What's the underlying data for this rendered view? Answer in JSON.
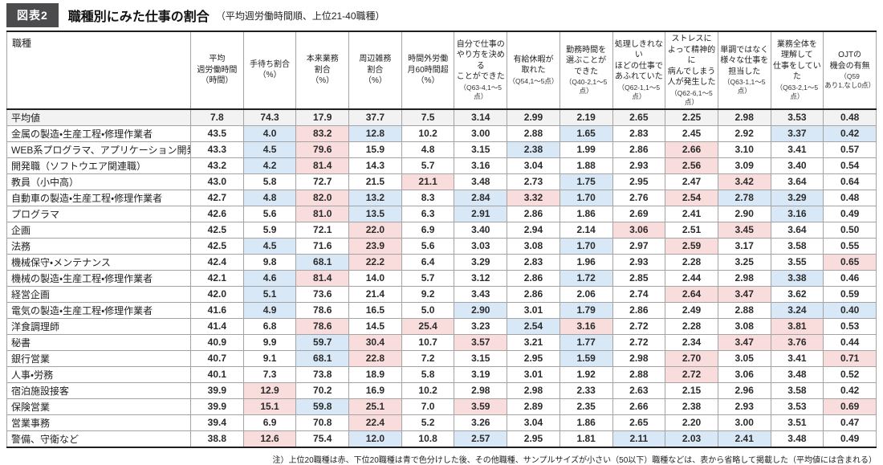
{
  "figure": {
    "tag": "図表2",
    "title": "職種別にみた仕事の割合",
    "subtitle": "（平均週労働時間順、上位21-40職種）"
  },
  "colors": {
    "highlight_top20": "#f9dcdc",
    "highlight_bottom20": "#d9e8f6",
    "average_row_bg": "#f2f2f2",
    "tag_bg": "#4b4b4d"
  },
  "footnote": "注）上位20職種は赤、下位20職種は青で色分けした後、その他職種、サンプルサイズが小さい（50以下）職種などは、表から省略して掲載した（平均値には含まれる）",
  "chart_data": {
    "type": "table",
    "row_header": "職種",
    "highlight_legend": {
      "r": "上位20職種（赤）",
      "b": "下位20職種（青）"
    },
    "columns": [
      {
        "lines": [
          "平均",
          "週労働時間",
          "（時間）"
        ]
      },
      {
        "lines": [
          "手待ち割合",
          "（%）"
        ]
      },
      {
        "lines": [
          "本来業務",
          "割合",
          "（%）"
        ]
      },
      {
        "lines": [
          "周辺雑務",
          "割合",
          "（%）"
        ]
      },
      {
        "lines": [
          "時間外労働",
          "月60時間超",
          "（%）"
        ]
      },
      {
        "lines": [
          "自分で仕事の",
          "やり方を決める",
          "ことができた"
        ],
        "note": [
          "（Q63-4,1～5点）"
        ]
      },
      {
        "lines": [
          "有給休暇が",
          "取れた"
        ],
        "note": [
          "（Q54,1～5点）"
        ]
      },
      {
        "lines": [
          "勤務時間を",
          "選ぶことが",
          "できた"
        ],
        "note": [
          "（Q40-2,1～5点）"
        ]
      },
      {
        "lines": [
          "処理しきれない",
          "ほどの仕事で",
          "あふれていた"
        ],
        "note": [
          "（Q62-1,1～5点）"
        ]
      },
      {
        "lines": [
          "ストレスに",
          "よって精神的に",
          "病んでしまう",
          "人が発生した"
        ],
        "note": [
          "（Q62-6,1～5点）"
        ]
      },
      {
        "lines": [
          "単調ではなく",
          "様々な仕事を",
          "担当した"
        ],
        "note": [
          "（Q63-1,1～5点）"
        ]
      },
      {
        "lines": [
          "業務全体を",
          "理解して",
          "仕事をしていた"
        ],
        "note": [
          "（Q63-2,1～5点）"
        ]
      },
      {
        "lines": [
          "OJTの",
          "機会の有無"
        ],
        "note": [
          "（Q59",
          "あり1,なし0点）"
        ]
      }
    ],
    "rows": [
      {
        "name": "平均値",
        "average": true,
        "values": [
          "7.8",
          "74.3",
          "17.9",
          "37.7",
          "7.5",
          "3.14",
          "2.99",
          "2.19",
          "2.65",
          "2.25",
          "2.98",
          "3.53",
          "0.48"
        ],
        "marks": [
          "",
          "",
          "",
          "",
          "",
          "",
          "",
          "",
          "",
          "",
          "",
          "",
          ""
        ]
      },
      {
        "name": "金属の製造・生産工程・修理作業者",
        "values": [
          "43.5",
          "4.0",
          "83.2",
          "12.8",
          "10.2",
          "3.00",
          "2.88",
          "1.65",
          "2.83",
          "2.45",
          "2.92",
          "3.37",
          "0.42"
        ],
        "marks": [
          "",
          "b",
          "r",
          "b",
          "",
          "",
          "",
          "b",
          "",
          "",
          "",
          "b",
          "b"
        ]
      },
      {
        "name": "WEB系プログラマ、アプリケーション開発",
        "values": [
          "43.3",
          "4.5",
          "79.6",
          "15.9",
          "4.8",
          "3.15",
          "2.38",
          "1.99",
          "2.86",
          "2.66",
          "3.10",
          "3.41",
          "0.57"
        ],
        "marks": [
          "",
          "b",
          "r",
          "",
          "",
          "",
          "b",
          "",
          "",
          "r",
          "",
          "",
          ""
        ]
      },
      {
        "name": "開発職（ソフトウエア関連職）",
        "values": [
          "43.2",
          "4.2",
          "81.4",
          "14.3",
          "5.7",
          "3.16",
          "3.04",
          "1.88",
          "2.93",
          "2.56",
          "3.09",
          "3.40",
          "0.54"
        ],
        "marks": [
          "",
          "b",
          "r",
          "",
          "",
          "",
          "",
          "",
          "",
          "r",
          "",
          "",
          ""
        ]
      },
      {
        "name": "教員（小中高）",
        "values": [
          "43.0",
          "5.8",
          "72.7",
          "21.5",
          "21.1",
          "3.48",
          "2.73",
          "1.75",
          "2.95",
          "2.47",
          "3.42",
          "3.64",
          "0.64"
        ],
        "marks": [
          "",
          "",
          "",
          "",
          "r",
          "",
          "",
          "b",
          "",
          "",
          "r",
          "",
          ""
        ]
      },
      {
        "name": "自動車の製造・生産工程・修理作業者",
        "values": [
          "42.7",
          "4.8",
          "82.0",
          "13.2",
          "8.3",
          "2.84",
          "3.32",
          "1.70",
          "2.76",
          "2.54",
          "2.78",
          "3.29",
          "0.48"
        ],
        "marks": [
          "",
          "b",
          "r",
          "b",
          "",
          "b",
          "r",
          "b",
          "",
          "r",
          "b",
          "b",
          ""
        ]
      },
      {
        "name": "プログラマ",
        "values": [
          "42.6",
          "5.6",
          "81.0",
          "13.5",
          "6.3",
          "2.91",
          "2.86",
          "1.86",
          "2.69",
          "2.41",
          "2.90",
          "3.16",
          "0.49"
        ],
        "marks": [
          "",
          "",
          "r",
          "b",
          "",
          "b",
          "",
          "",
          "",
          "",
          "",
          "b",
          ""
        ]
      },
      {
        "name": "企画",
        "values": [
          "42.5",
          "5.9",
          "72.1",
          "22.0",
          "6.9",
          "3.40",
          "2.94",
          "2.14",
          "3.06",
          "2.51",
          "3.45",
          "3.64",
          "0.50"
        ],
        "marks": [
          "",
          "",
          "",
          "r",
          "",
          "",
          "",
          "",
          "r",
          "",
          "r",
          "",
          ""
        ]
      },
      {
        "name": "法務",
        "values": [
          "42.5",
          "4.5",
          "71.6",
          "23.9",
          "5.6",
          "3.03",
          "3.08",
          "1.70",
          "2.97",
          "2.59",
          "3.17",
          "3.58",
          "0.55"
        ],
        "marks": [
          "",
          "b",
          "",
          "r",
          "",
          "",
          "",
          "b",
          "",
          "r",
          "",
          "",
          ""
        ]
      },
      {
        "name": "機械保守・メンテナンス",
        "values": [
          "42.4",
          "9.8",
          "68.1",
          "22.2",
          "6.4",
          "3.29",
          "2.83",
          "1.96",
          "2.93",
          "2.28",
          "3.25",
          "3.55",
          "0.65"
        ],
        "marks": [
          "",
          "",
          "b",
          "r",
          "",
          "",
          "",
          "",
          "",
          "",
          "",
          "",
          "r"
        ]
      },
      {
        "name": "機械の製造・生産工程・修理作業者",
        "values": [
          "42.1",
          "4.6",
          "81.4",
          "14.0",
          "5.7",
          "3.12",
          "2.86",
          "1.72",
          "2.85",
          "2.44",
          "2.98",
          "3.38",
          "0.46"
        ],
        "marks": [
          "",
          "b",
          "r",
          "",
          "",
          "",
          "",
          "b",
          "",
          "",
          "",
          "b",
          ""
        ]
      },
      {
        "name": "経営企画",
        "values": [
          "42.0",
          "5.1",
          "73.6",
          "21.4",
          "9.2",
          "3.43",
          "2.86",
          "2.06",
          "2.74",
          "2.64",
          "3.47",
          "3.62",
          "0.59"
        ],
        "marks": [
          "",
          "b",
          "",
          "",
          "",
          "",
          "",
          "",
          "",
          "r",
          "r",
          "",
          ""
        ]
      },
      {
        "name": "電気の製造・生産工程・修理作業者",
        "values": [
          "41.6",
          "4.9",
          "78.6",
          "16.5",
          "5.0",
          "2.90",
          "3.01",
          "1.79",
          "2.86",
          "2.49",
          "2.88",
          "3.24",
          "0.40"
        ],
        "marks": [
          "",
          "b",
          "",
          "",
          "",
          "b",
          "",
          "b",
          "",
          "",
          "",
          "b",
          "b"
        ]
      },
      {
        "name": "洋食調理師",
        "values": [
          "41.4",
          "6.8",
          "78.6",
          "14.5",
          "25.4",
          "3.23",
          "2.54",
          "3.16",
          "2.72",
          "2.28",
          "3.08",
          "3.81",
          "0.53"
        ],
        "marks": [
          "",
          "",
          "r",
          "",
          "r",
          "",
          "b",
          "r",
          "",
          "",
          "",
          "r",
          ""
        ]
      },
      {
        "name": "秘書",
        "values": [
          "40.9",
          "9.9",
          "59.7",
          "30.4",
          "10.7",
          "3.57",
          "3.21",
          "1.77",
          "2.72",
          "2.34",
          "3.47",
          "3.76",
          "0.44"
        ],
        "marks": [
          "",
          "",
          "b",
          "r",
          "",
          "r",
          "",
          "b",
          "",
          "",
          "r",
          "r",
          ""
        ]
      },
      {
        "name": "銀行営業",
        "values": [
          "40.7",
          "9.1",
          "68.1",
          "22.8",
          "7.2",
          "3.15",
          "2.95",
          "1.59",
          "2.98",
          "2.70",
          "3.05",
          "3.41",
          "0.71"
        ],
        "marks": [
          "",
          "",
          "b",
          "r",
          "",
          "",
          "",
          "b",
          "",
          "r",
          "",
          "",
          "r"
        ]
      },
      {
        "name": "人事・労務",
        "values": [
          "40.1",
          "7.3",
          "73.8",
          "18.9",
          "5.8",
          "3.19",
          "3.01",
          "1.92",
          "2.88",
          "2.72",
          "3.06",
          "3.48",
          "0.52"
        ],
        "marks": [
          "",
          "",
          "",
          "",
          "",
          "",
          "",
          "",
          "",
          "r",
          "",
          "",
          ""
        ]
      },
      {
        "name": "宿泊施設接客",
        "values": [
          "39.9",
          "12.9",
          "70.2",
          "16.9",
          "10.2",
          "2.98",
          "2.98",
          "2.33",
          "2.63",
          "2.15",
          "2.96",
          "3.58",
          "0.42"
        ],
        "marks": [
          "",
          "r",
          "",
          "",
          "",
          "",
          "",
          "",
          "",
          "",
          "",
          "",
          ""
        ]
      },
      {
        "name": "保険営業",
        "values": [
          "39.9",
          "15.1",
          "59.8",
          "25.1",
          "7.0",
          "3.59",
          "2.89",
          "2.35",
          "2.66",
          "2.38",
          "2.93",
          "3.53",
          "0.69"
        ],
        "marks": [
          "",
          "r",
          "b",
          "r",
          "",
          "r",
          "",
          "",
          "",
          "",
          "",
          "",
          "r"
        ]
      },
      {
        "name": "営業事務",
        "values": [
          "39.4",
          "6.9",
          "70.8",
          "22.4",
          "5.2",
          "3.26",
          "3.04",
          "1.86",
          "2.65",
          "2.20",
          "3.00",
          "3.51",
          "0.47"
        ],
        "marks": [
          "",
          "",
          "",
          "r",
          "",
          "",
          "",
          "",
          "",
          "",
          "",
          "",
          ""
        ]
      },
      {
        "name": "警備、守衛など",
        "values": [
          "38.8",
          "12.6",
          "75.4",
          "12.0",
          "10.8",
          "2.57",
          "2.95",
          "1.81",
          "2.11",
          "2.03",
          "2.41",
          "3.48",
          "0.49"
        ],
        "marks": [
          "",
          "r",
          "",
          "b",
          "",
          "b",
          "",
          "",
          "b",
          "b",
          "b",
          "",
          ""
        ]
      }
    ]
  }
}
